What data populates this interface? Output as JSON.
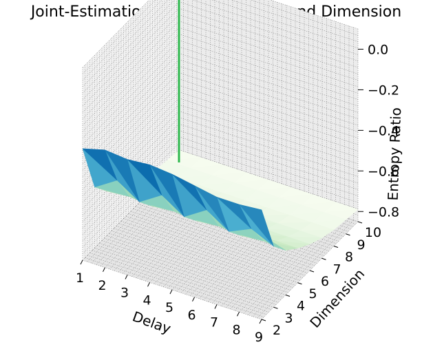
{
  "chart_data": {
    "type": "surface3d",
    "title": "Joint-Estimation of Optimal Delay and Dimension",
    "xlabel": "Delay",
    "ylabel": "Dimension",
    "zlabel": "Entropy Ratio",
    "x_ticks": [
      "1",
      "2",
      "3",
      "4",
      "5",
      "6",
      "7",
      "8",
      "9"
    ],
    "y_ticks": [
      "2",
      "3",
      "4",
      "5",
      "6",
      "7",
      "8",
      "9",
      "10"
    ],
    "z_ticks": [
      "0.0",
      "−0.2",
      "−0.4",
      "−0.6",
      "−0.8"
    ],
    "xlim": [
      1,
      9
    ],
    "ylim": [
      2,
      10
    ],
    "zlim": [
      -0.85,
      0.1
    ],
    "delay": [
      1,
      2,
      3,
      4,
      5,
      6,
      7,
      8,
      9
    ],
    "dimension": [
      2,
      3,
      4,
      5,
      6,
      7,
      8,
      9,
      10
    ],
    "entropy_ratio": [
      [
        -0.3,
        -0.27,
        -0.28,
        -0.27,
        -0.28,
        -0.3,
        -0.32,
        -0.32,
        -0.31
      ],
      [
        -0.55,
        -0.48,
        -0.55,
        -0.48,
        -0.55,
        -0.48,
        -0.55,
        -0.5,
        -0.55
      ],
      [
        -0.63,
        -0.62,
        -0.63,
        -0.62,
        -0.63,
        -0.62,
        -0.63,
        -0.62,
        -0.63
      ],
      [
        -0.68,
        -0.68,
        -0.68,
        -0.68,
        -0.68,
        -0.68,
        -0.68,
        -0.68,
        -0.68
      ],
      [
        -0.72,
        -0.72,
        -0.72,
        -0.72,
        -0.72,
        -0.72,
        -0.72,
        -0.72,
        -0.72
      ],
      [
        -0.75,
        -0.75,
        -0.75,
        -0.75,
        -0.75,
        -0.75,
        -0.75,
        -0.75,
        -0.75
      ],
      [
        -0.77,
        -0.77,
        -0.77,
        -0.77,
        -0.77,
        -0.77,
        -0.77,
        -0.77,
        -0.77
      ],
      [
        -0.78,
        -0.78,
        -0.78,
        -0.78,
        -0.78,
        -0.78,
        -0.78,
        -0.78,
        -0.78
      ],
      [
        -0.79,
        -0.79,
        -0.79,
        -0.79,
        -0.79,
        -0.79,
        -0.79,
        -0.79,
        -0.79
      ]
    ],
    "optimum": {
      "delay": 1,
      "dimension": 10,
      "entropy_ratio": 0.1
    },
    "colormap": "GnBu",
    "stem_color": "#2db84d",
    "marker_color": "#d62728",
    "grid": true
  }
}
